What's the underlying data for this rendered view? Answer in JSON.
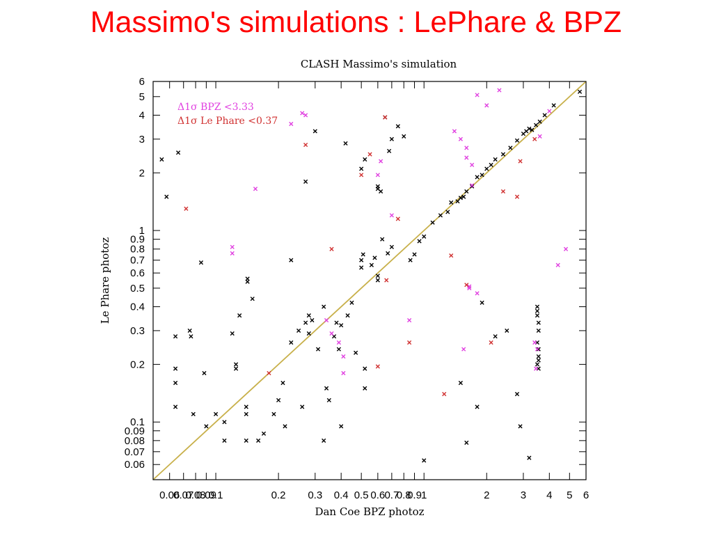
{
  "slide_title": "Massimo's simulations : LePhare & BPZ",
  "chart_data": {
    "type": "scatter",
    "title": "CLASH Massimo's simulation",
    "xlabel": "Dan Coe BPZ photoz",
    "ylabel": "Le Phare photoz",
    "xscale": "log",
    "yscale": "log",
    "xlim": [
      0.05,
      6
    ],
    "ylim": [
      0.05,
      6
    ],
    "x_tick_labels": [
      "0.06",
      "0.07",
      "0.08",
      "0.09",
      "0.1",
      "0.2",
      "0.3",
      "0.4",
      "0.5",
      "0.6",
      "0.7",
      "0.8",
      "0.9",
      "1",
      "2",
      "3",
      "4",
      "5",
      "6"
    ],
    "y_tick_labels": [
      "0.06",
      "0.07",
      "0.08",
      "0.09",
      "0.1",
      "0.2",
      "0.3",
      "0.4",
      "0.5",
      "0.6",
      "0.7",
      "0.8",
      "0.9",
      "1",
      "2",
      "3",
      "4",
      "5",
      "6"
    ],
    "grid": false,
    "legend_position": "top-left",
    "reference_line": {
      "from": [
        0.05,
        0.05
      ],
      "to": [
        6,
        6
      ],
      "color": "#c8b04a"
    },
    "series": [
      {
        "name": "",
        "color": "#000000",
        "marker": "x",
        "points": [
          [
            0.055,
            2.35
          ],
          [
            0.058,
            1.5
          ],
          [
            0.064,
            0.28
          ],
          [
            0.064,
            0.19
          ],
          [
            0.064,
            0.16
          ],
          [
            0.064,
            0.12
          ],
          [
            0.066,
            2.55
          ],
          [
            0.075,
            0.3
          ],
          [
            0.076,
            0.28
          ],
          [
            0.078,
            0.11
          ],
          [
            0.085,
            0.68
          ],
          [
            0.088,
            0.18
          ],
          [
            0.09,
            0.095
          ],
          [
            0.1,
            0.11
          ],
          [
            0.11,
            0.08
          ],
          [
            0.11,
            0.1
          ],
          [
            0.12,
            0.29
          ],
          [
            0.125,
            0.2
          ],
          [
            0.125,
            0.19
          ],
          [
            0.13,
            0.36
          ],
          [
            0.14,
            0.12
          ],
          [
            0.14,
            0.11
          ],
          [
            0.14,
            0.08
          ],
          [
            0.142,
            0.56
          ],
          [
            0.142,
            0.54
          ],
          [
            0.15,
            0.44
          ],
          [
            0.16,
            0.08
          ],
          [
            0.17,
            0.087
          ],
          [
            0.19,
            0.11
          ],
          [
            0.2,
            0.13
          ],
          [
            0.21,
            0.16
          ],
          [
            0.215,
            0.095
          ],
          [
            0.23,
            0.7
          ],
          [
            0.23,
            0.26
          ],
          [
            0.25,
            0.3
          ],
          [
            0.26,
            0.12
          ],
          [
            0.27,
            1.8
          ],
          [
            0.27,
            0.33
          ],
          [
            0.28,
            0.36
          ],
          [
            0.28,
            0.29
          ],
          [
            0.29,
            0.34
          ],
          [
            0.3,
            3.3
          ],
          [
            0.31,
            0.24
          ],
          [
            0.33,
            0.08
          ],
          [
            0.33,
            0.4
          ],
          [
            0.34,
            0.15
          ],
          [
            0.35,
            0.13
          ],
          [
            0.37,
            0.28
          ],
          [
            0.38,
            0.33
          ],
          [
            0.39,
            0.24
          ],
          [
            0.4,
            0.32
          ],
          [
            0.4,
            0.095
          ],
          [
            0.42,
            2.85
          ],
          [
            0.43,
            0.36
          ],
          [
            0.45,
            0.42
          ],
          [
            0.47,
            0.23
          ],
          [
            0.5,
            0.64
          ],
          [
            0.5,
            0.7
          ],
          [
            0.51,
            0.75
          ],
          [
            0.52,
            0.15
          ],
          [
            0.52,
            0.19
          ],
          [
            0.5,
            2.1
          ],
          [
            0.52,
            2.35
          ],
          [
            0.56,
            0.66
          ],
          [
            0.58,
            0.72
          ],
          [
            0.6,
            0.58
          ],
          [
            0.6,
            0.55
          ],
          [
            0.63,
            0.9
          ],
          [
            0.67,
            0.76
          ],
          [
            0.7,
            0.82
          ],
          [
            0.6,
            1.7
          ],
          [
            0.6,
            1.65
          ],
          [
            0.62,
            1.6
          ],
          [
            0.65,
            3.9
          ],
          [
            0.68,
            2.6
          ],
          [
            0.7,
            3.0
          ],
          [
            0.75,
            3.5
          ],
          [
            0.8,
            3.1
          ],
          [
            0.86,
            0.7
          ],
          [
            0.9,
            0.75
          ],
          [
            0.95,
            0.88
          ],
          [
            1.0,
            0.063
          ],
          [
            1.0,
            0.93
          ],
          [
            1.1,
            1.1
          ],
          [
            1.2,
            1.2
          ],
          [
            1.3,
            1.25
          ],
          [
            1.35,
            1.4
          ],
          [
            1.45,
            1.42
          ],
          [
            1.5,
            1.48
          ],
          [
            1.55,
            1.5
          ],
          [
            1.6,
            1.6
          ],
          [
            1.7,
            1.7
          ],
          [
            1.8,
            1.9
          ],
          [
            1.9,
            1.95
          ],
          [
            2.0,
            2.1
          ],
          [
            2.1,
            2.2
          ],
          [
            2.2,
            2.35
          ],
          [
            2.4,
            2.5
          ],
          [
            2.6,
            2.7
          ],
          [
            2.8,
            2.95
          ],
          [
            3.0,
            3.2
          ],
          [
            3.1,
            3.3
          ],
          [
            3.2,
            3.4
          ],
          [
            3.3,
            3.35
          ],
          [
            3.45,
            3.55
          ],
          [
            3.6,
            3.7
          ],
          [
            3.8,
            4.0
          ],
          [
            4.2,
            4.5
          ],
          [
            5.6,
            5.3
          ],
          [
            1.5,
            0.16
          ],
          [
            1.6,
            0.078
          ],
          [
            1.8,
            0.12
          ],
          [
            1.9,
            0.42
          ],
          [
            2.2,
            0.28
          ],
          [
            2.5,
            0.3
          ],
          [
            2.8,
            0.14
          ],
          [
            2.9,
            0.095
          ],
          [
            3.2,
            0.065
          ],
          [
            3.5,
            0.4
          ],
          [
            3.5,
            0.38
          ],
          [
            3.5,
            0.36
          ],
          [
            3.55,
            0.33
          ],
          [
            3.55,
            0.3
          ],
          [
            3.5,
            0.26
          ],
          [
            3.55,
            0.24
          ],
          [
            3.55,
            0.22
          ],
          [
            3.55,
            0.21
          ],
          [
            3.5,
            0.2
          ],
          [
            3.55,
            0.19
          ]
        ]
      },
      {
        "name": "Δ1σ BPZ <3.33",
        "color": "#e040e0",
        "marker": "x",
        "points": [
          [
            0.12,
            0.82
          ],
          [
            0.12,
            0.76
          ],
          [
            0.155,
            1.65
          ],
          [
            0.23,
            3.6
          ],
          [
            0.26,
            4.1
          ],
          [
            0.27,
            4.0
          ],
          [
            0.34,
            0.34
          ],
          [
            0.36,
            0.29
          ],
          [
            0.39,
            0.26
          ],
          [
            0.41,
            0.22
          ],
          [
            0.41,
            0.18
          ],
          [
            0.6,
            1.95
          ],
          [
            0.62,
            2.3
          ],
          [
            0.7,
            1.2
          ],
          [
            0.85,
            0.34
          ],
          [
            1.4,
            3.3
          ],
          [
            1.5,
            3.0
          ],
          [
            1.6,
            2.7
          ],
          [
            1.6,
            2.4
          ],
          [
            1.7,
            2.2
          ],
          [
            1.65,
            0.51
          ],
          [
            1.8,
            0.47
          ],
          [
            1.55,
            0.24
          ],
          [
            1.65,
            0.5
          ],
          [
            1.8,
            5.1
          ],
          [
            2.0,
            4.5
          ],
          [
            2.3,
            5.4
          ],
          [
            1.7,
            1.72
          ],
          [
            3.4,
            0.26
          ],
          [
            3.5,
            0.24
          ],
          [
            3.45,
            0.19
          ],
          [
            4.4,
            0.66
          ],
          [
            4.8,
            0.8
          ],
          [
            4.0,
            4.2
          ],
          [
            3.6,
            3.1
          ]
        ]
      },
      {
        "name": "Δ1σ Le Phare <0.37",
        "color": "#d03030",
        "marker": "x",
        "points": [
          [
            0.072,
            1.3
          ],
          [
            0.18,
            0.18
          ],
          [
            0.27,
            2.8
          ],
          [
            0.36,
            0.8
          ],
          [
            0.5,
            1.95
          ],
          [
            0.55,
            2.5
          ],
          [
            0.6,
            0.195
          ],
          [
            0.65,
            3.9
          ],
          [
            0.66,
            0.55
          ],
          [
            0.75,
            1.15
          ],
          [
            0.85,
            0.26
          ],
          [
            1.25,
            0.14
          ],
          [
            1.35,
            0.74
          ],
          [
            1.6,
            0.52
          ],
          [
            2.1,
            0.26
          ],
          [
            2.4,
            1.6
          ],
          [
            2.8,
            1.5
          ],
          [
            2.9,
            2.3
          ],
          [
            3.4,
            3.0
          ]
        ]
      }
    ]
  }
}
